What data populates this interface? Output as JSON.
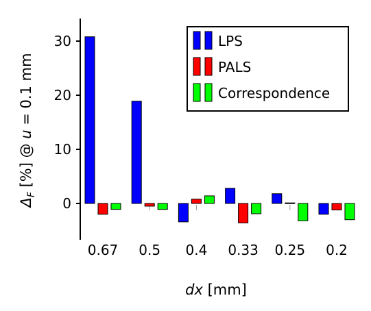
{
  "chart_data": {
    "type": "bar",
    "xlabel_var": "dx",
    "xlabel_unit": " [mm]",
    "ylabel_main": "Δ",
    "ylabel_sub": "F",
    "ylabel_mid": " [%] @ ",
    "ylabel_var": "u",
    "ylabel_end": " = 0.1 mm",
    "categories": [
      "0.67",
      "0.5",
      "0.4",
      "0.33",
      "0.25",
      "0.2"
    ],
    "yticks": [
      "0",
      "10",
      "20",
      "30"
    ],
    "ylim": [
      -7,
      34
    ],
    "grid": false,
    "legend_position": "top-right",
    "series": [
      {
        "name": "LPS",
        "color": "#0000ff",
        "values": [
          30.8,
          18.9,
          -3.4,
          2.8,
          1.8,
          -2.0
        ]
      },
      {
        "name": "PALS",
        "color": "#ff0000",
        "values": [
          -2.0,
          -0.5,
          0.8,
          -3.6,
          0.1,
          -1.2
        ]
      },
      {
        "name": "Correspondence",
        "color": "#00ff00",
        "values": [
          -1.1,
          -1.1,
          1.4,
          -1.9,
          -3.2,
          -3.0
        ]
      }
    ]
  }
}
